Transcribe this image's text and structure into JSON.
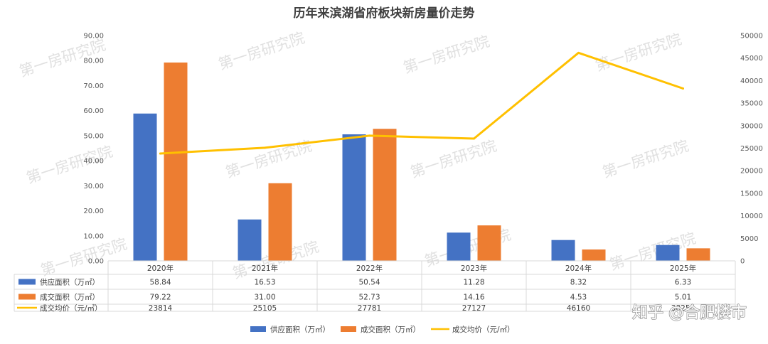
{
  "chart_data": {
    "type": "bar",
    "title": "历年来滨湖省府板块新房量价走势",
    "categories": [
      "2020年",
      "2021年",
      "2022年",
      "2023年",
      "2024年",
      "2025年"
    ],
    "series": [
      {
        "name": "供应面积（万㎡）",
        "type": "bar",
        "axis": "left",
        "color": "#4472C4",
        "values": [
          58.84,
          16.53,
          50.54,
          11.28,
          8.32,
          6.33
        ]
      },
      {
        "name": "成交面积（万㎡）",
        "type": "bar",
        "axis": "left",
        "color": "#ED7D31",
        "values": [
          79.22,
          31.0,
          52.73,
          14.16,
          4.53,
          5.01
        ]
      },
      {
        "name": "成交均价（元/㎡）",
        "type": "line",
        "axis": "right",
        "color": "#FFC000",
        "values": [
          23814,
          25105,
          27781,
          27127,
          46160,
          38250
        ]
      }
    ],
    "table_values": [
      [
        "58.84",
        "16.53",
        "50.54",
        "11.28",
        "8.32",
        "6.33"
      ],
      [
        "79.22",
        "31.00",
        "52.73",
        "14.16",
        "4.53",
        "5.01"
      ],
      [
        "23814",
        "25105",
        "27781",
        "27127",
        "46160",
        "38250"
      ]
    ],
    "y_left": {
      "min": 0,
      "max": 90,
      "step": 10,
      "ticks": [
        "0.00",
        "10.00",
        "20.00",
        "30.00",
        "40.00",
        "50.00",
        "60.00",
        "70.00",
        "80.00",
        "90.00"
      ]
    },
    "y_right": {
      "min": 0,
      "max": 50000,
      "step": 5000,
      "ticks": [
        "0",
        "5000",
        "10000",
        "15000",
        "20000",
        "25000",
        "30000",
        "35000",
        "40000",
        "45000",
        "50000"
      ]
    },
    "grid": false,
    "legend": "bottom",
    "watermark": "第一房研究院",
    "credit": "知乎 @合肥楼市"
  }
}
